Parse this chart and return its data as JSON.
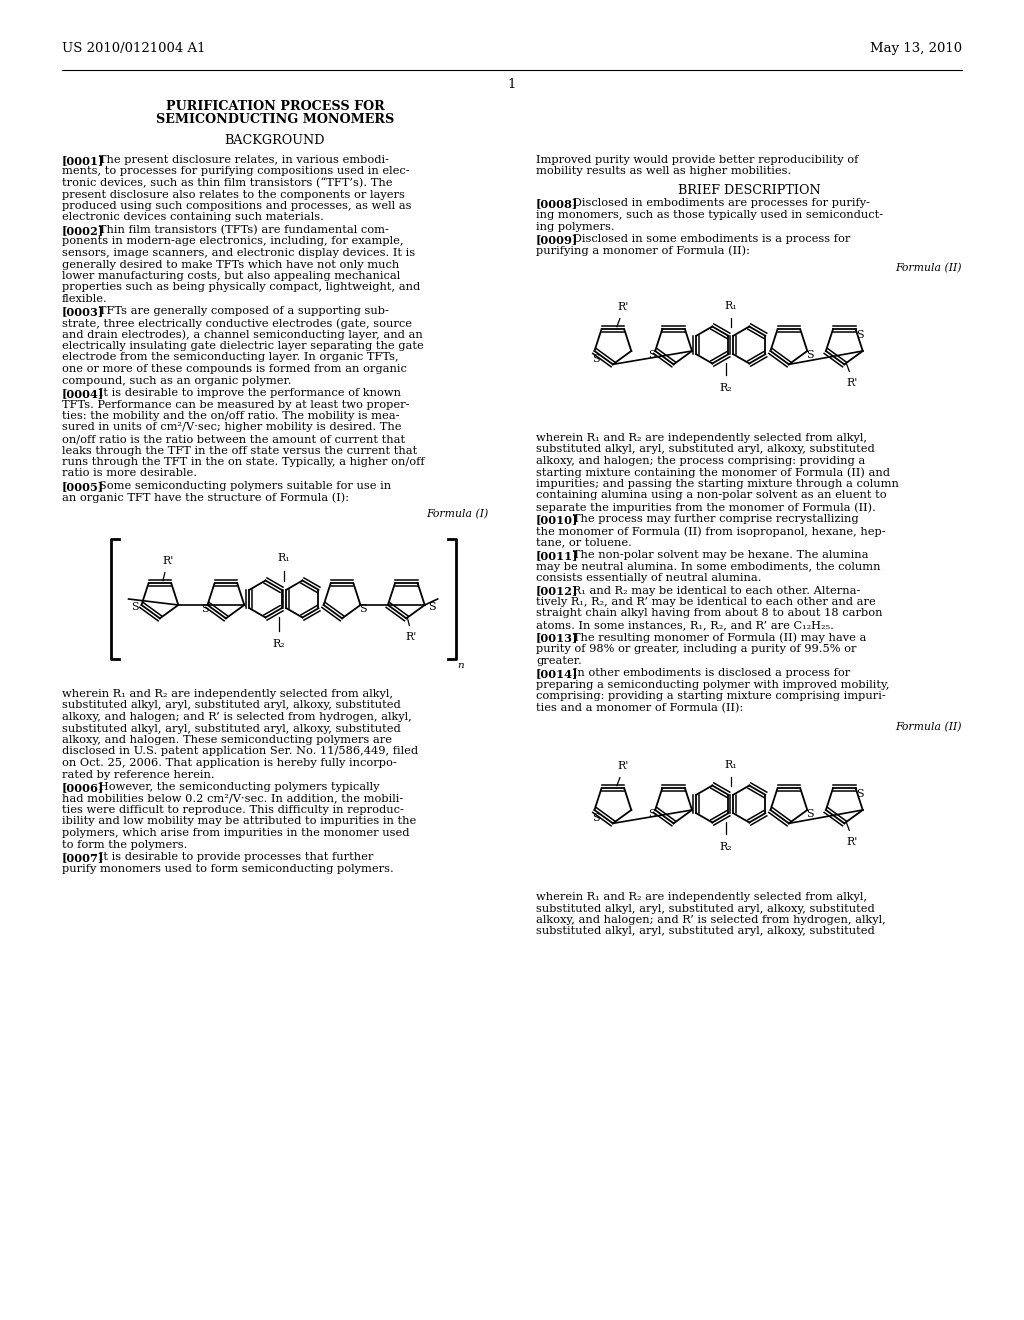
{
  "bg_color": "#ffffff",
  "text_color": "#000000",
  "header_left": "US 2010/0121004 A1",
  "header_right": "May 13, 2010",
  "page_number": "1",
  "title_line1": "PURIFICATION PROCESS FOR",
  "title_line2": "SEMICONDUCTING MONOMERS",
  "section1": "BACKGROUND",
  "section2": "BRIEF DESCRIPTION",
  "para0001": "[0001]   The present disclosure relates, in various embodi-\nments, to processes for purifying compositions used in elec-\ntronic devices, such as thin film transistors (“TFT’s). The\npresent disclosure also relates to the components or layers\nproduced using such compositions and processes, as well as\nelectronic devices containing such materials.",
  "para0002": "[0002]   Thin film transistors (TFTs) are fundamental com-\nponents in modern-age electronics, including, for example,\nsensors, image scanners, and electronic display devices. It is\ngenerally desired to make TFTs which have not only much\nlower manufacturing costs, but also appealing mechanical\nproperties such as being physically compact, lightweight, and\nflexible.",
  "para0003": "[0003]   TFTs are generally composed of a supporting sub-\nstrate, three electrically conductive electrodes (gate, source\nand drain electrodes), a channel semiconducting layer, and an\nelectrically insulating gate dielectric layer separating the gate\nelectrode from the semiconducting layer. In organic TFTs,\none or more of these compounds is formed from an organic\ncompound, such as an organic polymer.",
  "para0004": "[0004]   It is desirable to improve the performance of known\nTFTs. Performance can be measured by at least two proper-\nties: the mobility and the on/off ratio. The mobility is mea-\nsured in units of cm²/V·sec; higher mobility is desired. The\non/off ratio is the ratio between the amount of current that\nleaks through the TFT in the off state versus the current that\nruns through the TFT in the on state. Typically, a higher on/off\nratio is more desirable.",
  "para0005": "[0005]   Some semiconducting polymers suitable for use in\nan organic TFT have the structure of Formula (I):",
  "formula_I_label": "Formula (I)",
  "para0005b": "wherein R₁ and R₂ are independently selected from alkyl,\nsubstituted alkyl, aryl, substituted aryl, alkoxy, substituted\nalkoxy, and halogen; and R’ is selected from hydrogen, alkyl,\nsubstituted alkyl, aryl, substituted aryl, alkoxy, substituted\nalkoxy, and halogen. These semiconducting polymers are\ndisclosed in U.S. patent application Ser. No. 11/586,449, filed\non Oct. 25, 2006. That application is hereby fully incorpo-\nrated by reference herein.",
  "para0006": "[0006]   However, the semiconducting polymers typically\nhad mobilities below 0.2 cm²/V·sec. In addition, the mobili-\nties were difficult to reproduce. This difficulty in reproduc-\nibility and low mobility may be attributed to impurities in the\npolymers, which arise from impurities in the monomer used\nto form the polymers.",
  "para0007": "[0007]   It is desirable to provide processes that further\npurify monomers used to form semiconducting polymers.",
  "para0007b_line1": "Improved purity would provide better reproducibility of",
  "para0007b_line2": "mobility results as well as higher mobilities.",
  "para0008": "[0008]   Disclosed in embodiments are processes for purify-\ning monomers, such as those typically used in semiconduct-\ning polymers.",
  "para0009": "[0009]   Disclosed in some embodiments is a process for\npurifying a monomer of Formula (II):",
  "formula_II_label": "Formula (II)",
  "para0009b": "wherein R₁ and R₂ are independently selected from alkyl,\nsubstituted alkyl, aryl, substituted aryl, alkoxy, substituted\nalkoxy, and halogen; the process comprising: providing a\nstarting mixture containing the monomer of Formula (II) and\nimpurities; and passing the starting mixture through a column\ncontaining alumina using a non-polar solvent as an eluent to\nseparate the impurities from the monomer of Formula (II).",
  "para0010": "[0010]   The process may further comprise recrystallizing\nthe monomer of Formula (II) from isopropanol, hexane, hep-\ntane, or toluene.",
  "para0011": "[0011]   The non-polar solvent may be hexane. The alumina\nmay be neutral alumina. In some embodiments, the column\nconsists essentially of neutral alumina.",
  "para0012": "[0012]   R₁ and R₂ may be identical to each other. Alterna-\ntively R₁, R₂, and R’ may be identical to each other and are\nstraight chain alkyl having from about 8 to about 18 carbon\natoms. In some instances, R₁, R₂, and R’ are C₁₂H₂₅.",
  "para0013": "[0013]   The resulting monomer of Formula (II) may have a\npurity of 98% or greater, including a purity of 99.5% or\ngreater.",
  "para0014": "[0014]   In other embodiments is disclosed a process for\npreparing a semiconducting polymer with improved mobility,\ncomprising: providing a starting mixture comprising impuri-\nties and a monomer of Formula (II):",
  "formula_II_label2": "Formula (II)",
  "para0014b": "wherein R₁ and R₂ are independently selected from alkyl,\nsubstituted alkyl, aryl, substituted aryl, alkoxy, substituted\nalkoxy, and halogen; and R’ is selected from hydrogen, alkyl,\nsubstituted alkyl, aryl, substituted aryl, alkoxy, substituted"
}
